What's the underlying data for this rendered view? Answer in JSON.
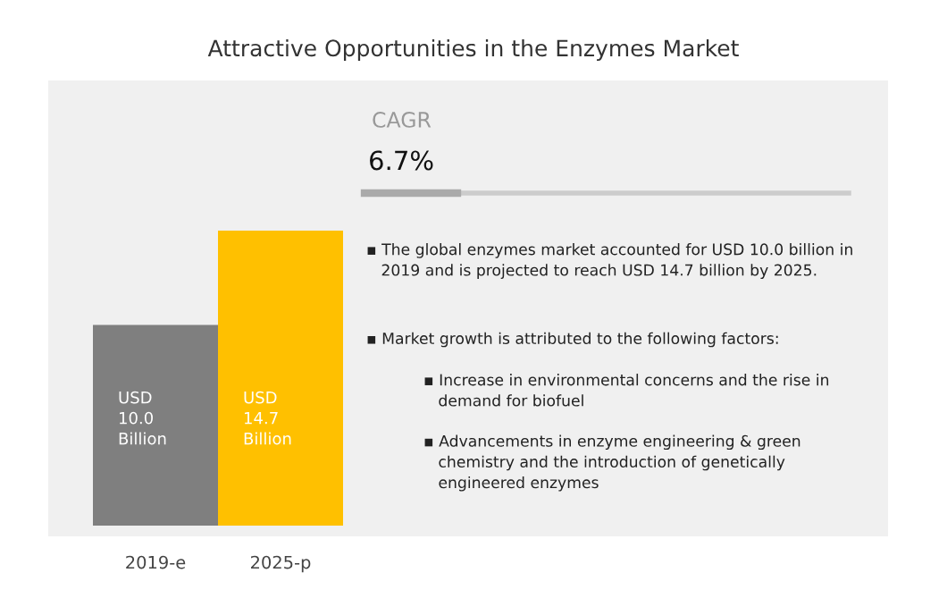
{
  "chart_data": {
    "type": "bar",
    "title": "Attractive Opportunities in the Enzymes Market",
    "categories": [
      "2019-e",
      "2025-p"
    ],
    "values": [
      10.0,
      14.7
    ],
    "colors": [
      "#7f7f7f",
      "#ffc000"
    ],
    "value_labels": [
      "USD\n10.0\nBillion",
      "USD\n14.7\nBillion"
    ],
    "annotations": [
      "CAGR",
      "6.7%",
      "▪ The global enzymes market accounted for USD 10.0 billion in\n   2019 and is projected to reach USD 14.7 billion by 2025.",
      "▪ Market growth is attributed to the following factors:",
      "▪ Increase in environmental concerns and the rise in\n   demand for biofuel",
      "▪ Advancements in enzyme engineering & green\n   chemistry and the introduction of genetically\n   engineered enzymes"
    ],
    "legend": false
  }
}
